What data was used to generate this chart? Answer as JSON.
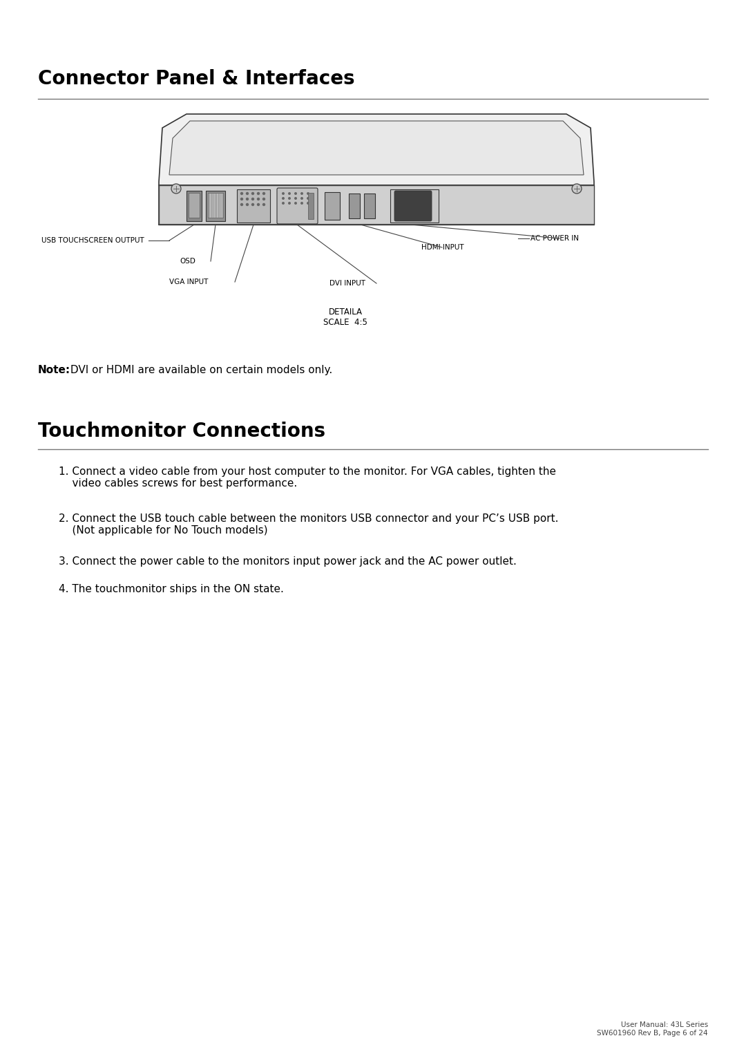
{
  "title1": "Connector Panel & Interfaces",
  "title2": "Touchmonitor Connections",
  "note_bold": "Note:",
  "note_text": " DVI or HDMI are available on certain models only.",
  "detail_label": "DETAILA\nSCALE  4:5",
  "labels": {
    "usb": "USB TOUCHSCREEN OUTPUT",
    "osd": "OSD",
    "vga": "VGA INPUT",
    "hdmi": "HDMI INPUT",
    "ac": "AC POWER IN",
    "dvi": "DVI INPUT"
  },
  "items": [
    "1. Connect a video cable from your host computer to the monitor. For VGA cables, tighten the\n    video cables screws for best performance.",
    "2. Connect the USB touch cable between the monitors USB connector and your PC’s USB port.\n    (Not applicable for No Touch models)",
    "3. Connect the power cable to the monitors input power jack and the AC power outlet.",
    "4. The touchmonitor ships in the ON state."
  ],
  "footer": "User Manual: 43L Series\nSW601960 Rev B, Page 6 of 24",
  "bg_color": "#ffffff",
  "text_color": "#000000",
  "line_color": "#555555",
  "title_fontsize": 20,
  "body_fontsize": 11,
  "label_fontsize": 7.5,
  "footer_fontsize": 7.5
}
